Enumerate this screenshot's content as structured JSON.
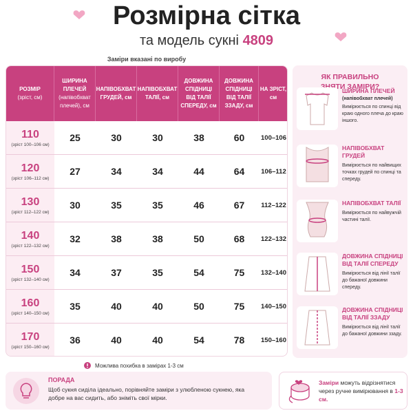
{
  "header": {
    "title": "Розмірна сітка",
    "subtitle": "та модель сукні",
    "model": "4809",
    "note": "Заміри вказані по виробу"
  },
  "table": {
    "columns": [
      [
        "РОЗМІР",
        "(зріст, см)"
      ],
      [
        "ШИРИНА",
        "ПЛЕЧЕЙ",
        "(напівобхват",
        "плечей), см"
      ],
      [
        "НАПІВОБХВАТ",
        "ГРУДЕЙ, см"
      ],
      [
        "НАПІВОБХВАТ",
        "ТАЛІЇ, см"
      ],
      [
        "ДОВЖИНА",
        "СПІДНИЦІ",
        "ВІД ТАЛІЇ",
        "СПЕРЕДУ, см"
      ],
      [
        "ДОВЖИНА",
        "СПІДНИЦІ",
        "ВІД ТАЛІЇ",
        "ЗЗАДУ, см"
      ],
      [
        "НА ЗРІСТ,",
        "см"
      ]
    ],
    "rows": [
      [
        "110",
        "(зріст 100–106 см)",
        "25",
        "30",
        "30",
        "38",
        "60",
        "100–106"
      ],
      [
        "120",
        "(зріст 106–112 см)",
        "27",
        "34",
        "34",
        "44",
        "64",
        "106–112"
      ],
      [
        "130",
        "(зріст 112–122 см)",
        "30",
        "35",
        "35",
        "46",
        "67",
        "112–122"
      ],
      [
        "140",
        "(зріст 122–132 см)",
        "32",
        "38",
        "38",
        "50",
        "68",
        "122–132"
      ],
      [
        "150",
        "(зріст 132–140 см)",
        "34",
        "37",
        "35",
        "54",
        "75",
        "132–140"
      ],
      [
        "160",
        "(зріст 140–150 см)",
        "35",
        "40",
        "40",
        "50",
        "75",
        "140–150"
      ],
      [
        "170",
        "(зріст 150–160 см)",
        "36",
        "40",
        "40",
        "54",
        "78",
        "150–160"
      ]
    ]
  },
  "guide": {
    "title": "ЯК ПРАВИЛЬНО ЗНЯТИ ЗАМІРИ?",
    "items": [
      {
        "title": "ШИРИНА ПЛЕЧЕЙ",
        "subtitle": "(напівобхват плечей)",
        "text": "Вимірюється по спинці від краю одного плеча до краю іншого."
      },
      {
        "title": "НАПІВОБХВАТ ГРУДЕЙ",
        "text": "Вимірюється по найвищих точках грудей по спинці та спереду."
      },
      {
        "title": "НАПІВОБХВАТ ТАЛІЇ",
        "text": "Вимірюється по найвужчій частині талії."
      },
      {
        "title": "ДОВЖИНА СПІДНИЦІ ВІД ТАЛІЇ СПЕРЕДУ",
        "text": "Вимірюється від лінії талії до бажаної довжини спереду."
      },
      {
        "title": "ДОВЖИНА СПІДНИЦІ ВІД ТАЛІЇ ЗЗАДУ",
        "text": "Вимірюється від лінії талії до бажаної довжини ззаду."
      }
    ]
  },
  "footnote": "Можлива похибка в замірах 1-3 см",
  "tip": {
    "title": "ПОРАДА",
    "text": "Щоб сукня сиділа ідеально, порівняйте заміри з улюбленою сукнею, яка добре на вас сидить, або зніміть свої мірки."
  },
  "warning": {
    "lead": "Заміри",
    "text": "можуть відрізнятися через ручне вимірювання в",
    "accent": "1-3 см."
  }
}
